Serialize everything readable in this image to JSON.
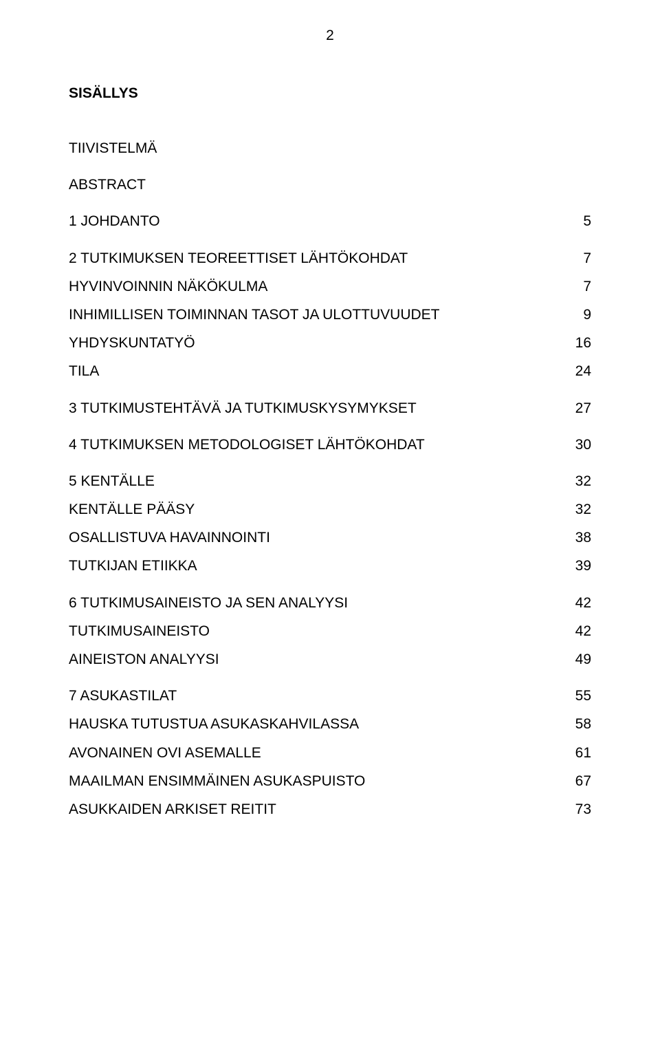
{
  "page_number": "2",
  "title": "SISÄLLYS",
  "entries": [
    {
      "label": "TIIVISTELMÄ",
      "page": "",
      "bold": false,
      "gap": "gap-huge"
    },
    {
      "label": "ABSTRACT",
      "page": "",
      "bold": false,
      "gap": "gap-big"
    },
    {
      "label": "1 JOHDANTO",
      "page": "5",
      "bold": false,
      "gap": "gap-big"
    },
    {
      "label": "2 TUTKIMUKSEN TEOREETTISET LÄHTÖKOHDAT",
      "page": "7",
      "bold": false,
      "gap": "gap-big"
    },
    {
      "label": "HYVINVOINNIN NÄKÖKULMA",
      "page": "7",
      "bold": false,
      "gap": "gap-med"
    },
    {
      "label": "INHIMILLISEN TOIMINNAN TASOT JA ULOTTUVUUDET",
      "page": "9",
      "bold": false,
      "gap": "gap-med"
    },
    {
      "label": "YHDYSKUNTATYÖ",
      "page": "16",
      "bold": false,
      "gap": "gap-med"
    },
    {
      "label": "TILA",
      "page": "24",
      "bold": false,
      "gap": "gap-med"
    },
    {
      "label": "3 TUTKIMUSTEHTÄVÄ JA TUTKIMUSKYSYMYKSET",
      "page": "27",
      "bold": false,
      "gap": "gap-big"
    },
    {
      "label": "4 TUTKIMUKSEN METODOLOGISET LÄHTÖKOHDAT",
      "page": "30",
      "bold": false,
      "gap": "gap-big"
    },
    {
      "label": "5 KENTÄLLE",
      "page": "32",
      "bold": false,
      "gap": "gap-big"
    },
    {
      "label": "KENTÄLLE PÄÄSY",
      "page": "32",
      "bold": false,
      "gap": "gap-med"
    },
    {
      "label": "OSALLISTUVA HAVAINNOINTI",
      "page": "38",
      "bold": false,
      "gap": "gap-med"
    },
    {
      "label": "TUTKIJAN ETIIKKA",
      "page": "39",
      "bold": false,
      "gap": "gap-med"
    },
    {
      "label": "6 TUTKIMUSAINEISTO JA SEN ANALYYSI",
      "page": "42",
      "bold": false,
      "gap": "gap-big"
    },
    {
      "label": "TUTKIMUSAINEISTO",
      "page": "42",
      "bold": false,
      "gap": "gap-med"
    },
    {
      "label": "AINEISTON ANALYYSI",
      "page": "49",
      "bold": false,
      "gap": "gap-med"
    },
    {
      "label": "7 ASUKASTILAT",
      "page": "55",
      "bold": false,
      "gap": "gap-big"
    },
    {
      "label": "HAUSKA TUTUSTUA ASUKASKAHVILASSA",
      "page": "58",
      "bold": false,
      "gap": "gap-med"
    },
    {
      "label": "AVONAINEN OVI ASEMALLE",
      "page": "61",
      "bold": false,
      "gap": "gap-med"
    },
    {
      "label": "MAAILMAN ENSIMMÄINEN ASUKASPUISTO",
      "page": "67",
      "bold": false,
      "gap": "gap-med"
    },
    {
      "label": "ASUKKAIDEN ARKISET REITIT",
      "page": "73",
      "bold": false,
      "gap": "gap-med"
    }
  ]
}
